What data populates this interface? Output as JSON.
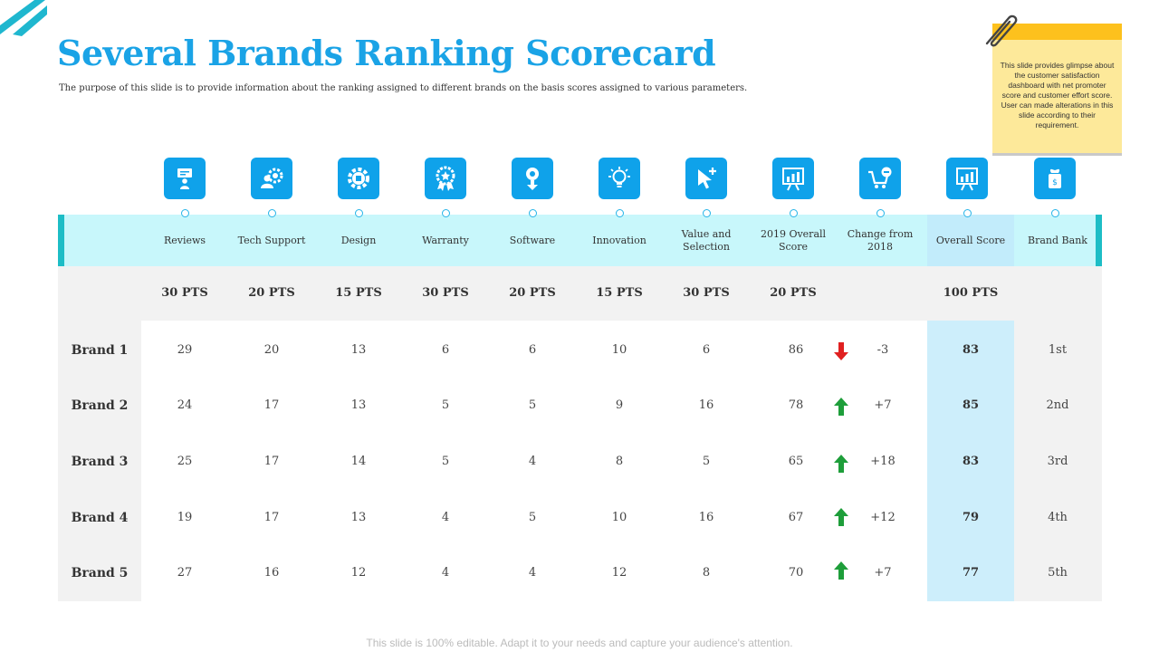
{
  "title": "Several Brands Ranking Scorecard",
  "subtitle": "The purpose of this slide is to provide information about the ranking assigned to different brands on the basis scores assigned to various parameters.",
  "note": "This slide provides glimpse about the customer satisfaction dashboard with net promoter score and customer effort score. User can made alterations in this slide according to their requirement.",
  "footer": "This slide is 100% editable. Adapt it to your needs and capture your audience's attention.",
  "colors": {
    "accent": "#1aa3e6",
    "icon_bg": "#0fa2ea",
    "header_band": "#c8f7fb",
    "up": "#1e9e3a",
    "down": "#e02020"
  },
  "columns": [
    {
      "label": "Reviews",
      "points": "30 PTS",
      "icon": "presenter-icon"
    },
    {
      "label": "Tech Support",
      "points": "20 PTS",
      "icon": "support-gear-icon"
    },
    {
      "label": "Design",
      "points": "15 PTS",
      "icon": "design-gear-icon"
    },
    {
      "label": "Warranty",
      "points": "30 PTS",
      "icon": "award-badge-icon"
    },
    {
      "label": "Software",
      "points": "20 PTS",
      "icon": "software-download-icon"
    },
    {
      "label": "Innovation",
      "points": "15 PTS",
      "icon": "lightbulb-icon"
    },
    {
      "label": "Value and Selection",
      "points": "30 PTS",
      "icon": "cursor-plus-icon"
    },
    {
      "label": "2019 Overall Score",
      "points": "20 PTS",
      "icon": "chart-board-icon"
    },
    {
      "label": "Change from 2018",
      "points": "",
      "icon": "cart-minus-icon"
    },
    {
      "label": "Overall Score",
      "points": "100 PTS",
      "icon": "chart-board-icon"
    },
    {
      "label": "Brand Bank",
      "points": "",
      "icon": "money-bag-icon"
    }
  ],
  "rows": [
    {
      "brand": "Brand 1",
      "values": [
        "29",
        "20",
        "13",
        "6",
        "6",
        "10",
        "6",
        "86"
      ],
      "trend": "down",
      "change": "-3",
      "overall": "83",
      "rank": "1st"
    },
    {
      "brand": "Brand 2",
      "values": [
        "24",
        "17",
        "13",
        "5",
        "5",
        "9",
        "16",
        "78"
      ],
      "trend": "up",
      "change": "+7",
      "overall": "85",
      "rank": "2nd"
    },
    {
      "brand": "Brand 3",
      "values": [
        "25",
        "17",
        "14",
        "5",
        "4",
        "8",
        "5",
        "65"
      ],
      "trend": "up",
      "change": "+18",
      "overall": "83",
      "rank": "3rd"
    },
    {
      "brand": "Brand 4",
      "values": [
        "19",
        "17",
        "13",
        "4",
        "5",
        "10",
        "16",
        "67"
      ],
      "trend": "up",
      "change": "+12",
      "overall": "79",
      "rank": "4th"
    },
    {
      "brand": "Brand 5",
      "values": [
        "27",
        "16",
        "12",
        "4",
        "4",
        "12",
        "8",
        "70"
      ],
      "trend": "up",
      "change": "+7",
      "overall": "77",
      "rank": "5th"
    }
  ]
}
